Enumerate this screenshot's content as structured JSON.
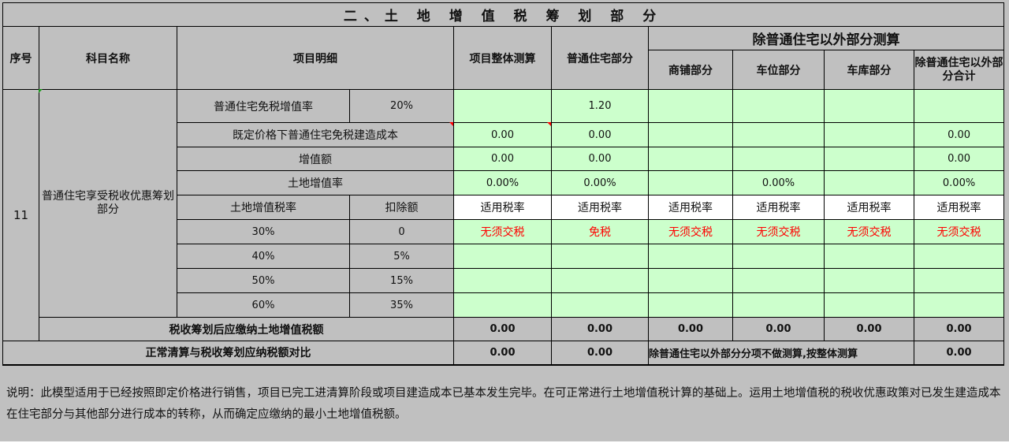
{
  "title": "二、土 地 增 值 税 筹 划 部 分",
  "headers": {
    "seq": "序号",
    "subject": "科目名称",
    "detail": "项目明细",
    "overall": "项目整体测算",
    "ordinary": "普通住宅部分",
    "others_group": "除普通住宅以外部分测算",
    "shops": "商铺部分",
    "parking_space": "车位部分",
    "garage": "车库部分",
    "others_total": "除普通住宅以外部分合计"
  },
  "seq": "11",
  "subject": "普通住宅享受税收优惠筹划部分",
  "rows": {
    "exempt_rate": {
      "label": "普通住宅免税增值率",
      "value": "20%",
      "overall": "",
      "ordinary": "1.20",
      "shops": "",
      "parking": "",
      "garage": "",
      "total": ""
    },
    "exempt_cost": {
      "label": "既定价格下普通住宅免税建造成本",
      "overall": "0.00",
      "ordinary": "0.00",
      "shops": "",
      "parking": "",
      "garage": "",
      "total": "0.00"
    },
    "increment": {
      "label": "增值额",
      "overall": "0.00",
      "ordinary": "0.00",
      "shops": "",
      "parking": "",
      "garage": "",
      "total": "0.00"
    },
    "increment_rate": {
      "label": "土地增值率",
      "overall": "0.00%",
      "ordinary": "0.00%",
      "shops": "",
      "parking": "0.00%",
      "garage": "",
      "total": "0.00%"
    },
    "rate_header": {
      "label": "土地增值税率",
      "deduction": "扣除额",
      "applicable": "适用税率"
    },
    "brackets": [
      {
        "rate": "30%",
        "deduction": "0",
        "overall": "无须交税",
        "ordinary": "免税",
        "shops": "无须交税",
        "parking": "无须交税",
        "garage": "无须交税",
        "total": "无须交税"
      },
      {
        "rate": "40%",
        "deduction": "5%",
        "overall": "",
        "ordinary": "",
        "shops": "",
        "parking": "",
        "garage": "",
        "total": ""
      },
      {
        "rate": "50%",
        "deduction": "15%",
        "overall": "",
        "ordinary": "",
        "shops": "",
        "parking": "",
        "garage": "",
        "total": ""
      },
      {
        "rate": "60%",
        "deduction": "35%",
        "overall": "",
        "ordinary": "",
        "shops": "",
        "parking": "",
        "garage": "",
        "total": ""
      }
    ],
    "after_planning": {
      "label": "税收筹划后应缴纳土地增值税额",
      "overall": "0.00",
      "ordinary": "0.00",
      "shops": "0.00",
      "parking": "0.00",
      "garage": "0.00",
      "total": "0.00"
    },
    "comparison": {
      "label": "正常清算与税收筹划应纳税额对比",
      "overall": "0.00",
      "ordinary": "0.00",
      "note": "除普通住宅以外部分分项不做测算,按整体测算",
      "total": "0.00"
    }
  },
  "note": "说明：此模型适用于已经按照即定价格进行销售，项目已完工进清算阶段或项目建造成本已基本发生完毕。在可正常进行土地增值税计算的基础上。运用土地增值税的税收优惠政策对已发生建造成本在住宅部分与其他部分进行成本的转称，从而确定应缴纳的最小土地增值税额。",
  "colors": {
    "input_green": "#ccffcc",
    "gray": "#c0c0c0",
    "warning_red": "#ff0000"
  }
}
